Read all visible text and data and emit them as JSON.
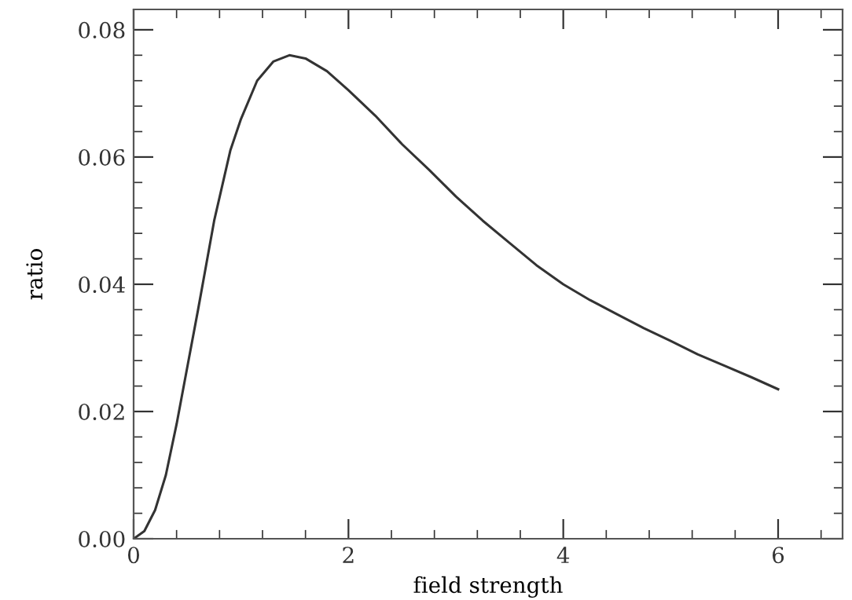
{
  "chart_data": {
    "type": "line",
    "xlabel": "field strength",
    "ylabel": "ratio",
    "x": [
      0,
      0.1,
      0.2,
      0.3,
      0.4,
      0.5,
      0.6,
      0.75,
      0.9,
      1.0,
      1.15,
      1.3,
      1.45,
      1.6,
      1.8,
      2.0,
      2.25,
      2.5,
      2.75,
      3.0,
      3.25,
      3.5,
      3.75,
      4.0,
      4.25,
      4.5,
      4.75,
      5.0,
      5.25,
      5.5,
      5.75,
      6.0
    ],
    "series": [
      {
        "color": "#333333",
        "values": [
          0,
          0.0012,
          0.0045,
          0.01,
          0.018,
          0.027,
          0.036,
          0.05,
          0.061,
          0.066,
          0.072,
          0.075,
          0.076,
          0.0755,
          0.0735,
          0.0705,
          0.0665,
          0.062,
          0.058,
          0.0538,
          0.05,
          0.0465,
          0.043,
          0.04,
          0.0375,
          0.0353,
          0.0331,
          0.0311,
          0.029,
          0.0272,
          0.0254,
          0.0235
        ]
      }
    ],
    "xlim": [
      0,
      6.6
    ],
    "ylim": [
      0,
      0.0832
    ],
    "xticks": [
      0,
      2,
      4,
      6
    ],
    "yticks": [
      {
        "value": 0,
        "label": "0.00"
      },
      {
        "value": 0.02,
        "label": "0.02"
      },
      {
        "value": 0.04,
        "label": "0.04"
      },
      {
        "value": 0.06,
        "label": "0.06"
      },
      {
        "value": 0.08,
        "label": "0.08"
      }
    ],
    "grid": false,
    "legend": false,
    "marker": "none",
    "line_style": "solid"
  }
}
